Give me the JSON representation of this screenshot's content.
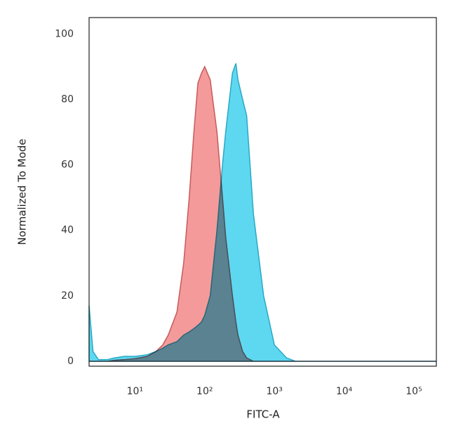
{
  "chart_data": {
    "type": "area",
    "log_x": true,
    "xlabel": "FITC-A",
    "ylabel": "Normalized To Mode",
    "xlim": [
      2.2,
      210000
    ],
    "ylim": [
      -1.5,
      105
    ],
    "xticks": [
      {
        "value": 10,
        "label": "10¹"
      },
      {
        "value": 100,
        "label": "10²"
      },
      {
        "value": 1000,
        "label": "10³"
      },
      {
        "value": 10000,
        "label": "10⁴"
      },
      {
        "value": 100000,
        "label": "10⁵"
      }
    ],
    "yticks": [
      0,
      20,
      40,
      60,
      80,
      100
    ],
    "x": [
      2.2,
      2.5,
      3,
      4,
      5,
      7,
      10,
      15,
      20,
      25,
      30,
      40,
      50,
      60,
      70,
      80,
      90,
      100,
      120,
      150,
      180,
      200,
      250,
      280,
      300,
      350,
      400,
      500,
      700,
      1000,
      1500,
      2000,
      5000,
      10000,
      100000,
      210000
    ],
    "series": [
      {
        "color": "#5ed8f0",
        "stroke": "#2aa8c4",
        "values": [
          17,
          3,
          0.5,
          0.5,
          1,
          1.5,
          1.5,
          2,
          3,
          4,
          5,
          6,
          8,
          9,
          10,
          11,
          12,
          14,
          20,
          40,
          60,
          70,
          88,
          91,
          86,
          80,
          75,
          45,
          20,
          5,
          1,
          0,
          0,
          0,
          0,
          0
        ]
      },
      {
        "color": "#f49a9a",
        "stroke": "#c85a5a",
        "values": [
          0,
          0,
          0,
          0,
          0.3,
          0.5,
          0.8,
          1.5,
          3,
          5,
          8,
          15,
          30,
          50,
          70,
          85,
          88,
          90,
          86,
          70,
          50,
          38,
          20,
          12,
          8,
          3,
          1,
          0,
          0,
          0,
          0,
          0,
          0,
          0,
          0,
          0
        ]
      }
    ]
  }
}
